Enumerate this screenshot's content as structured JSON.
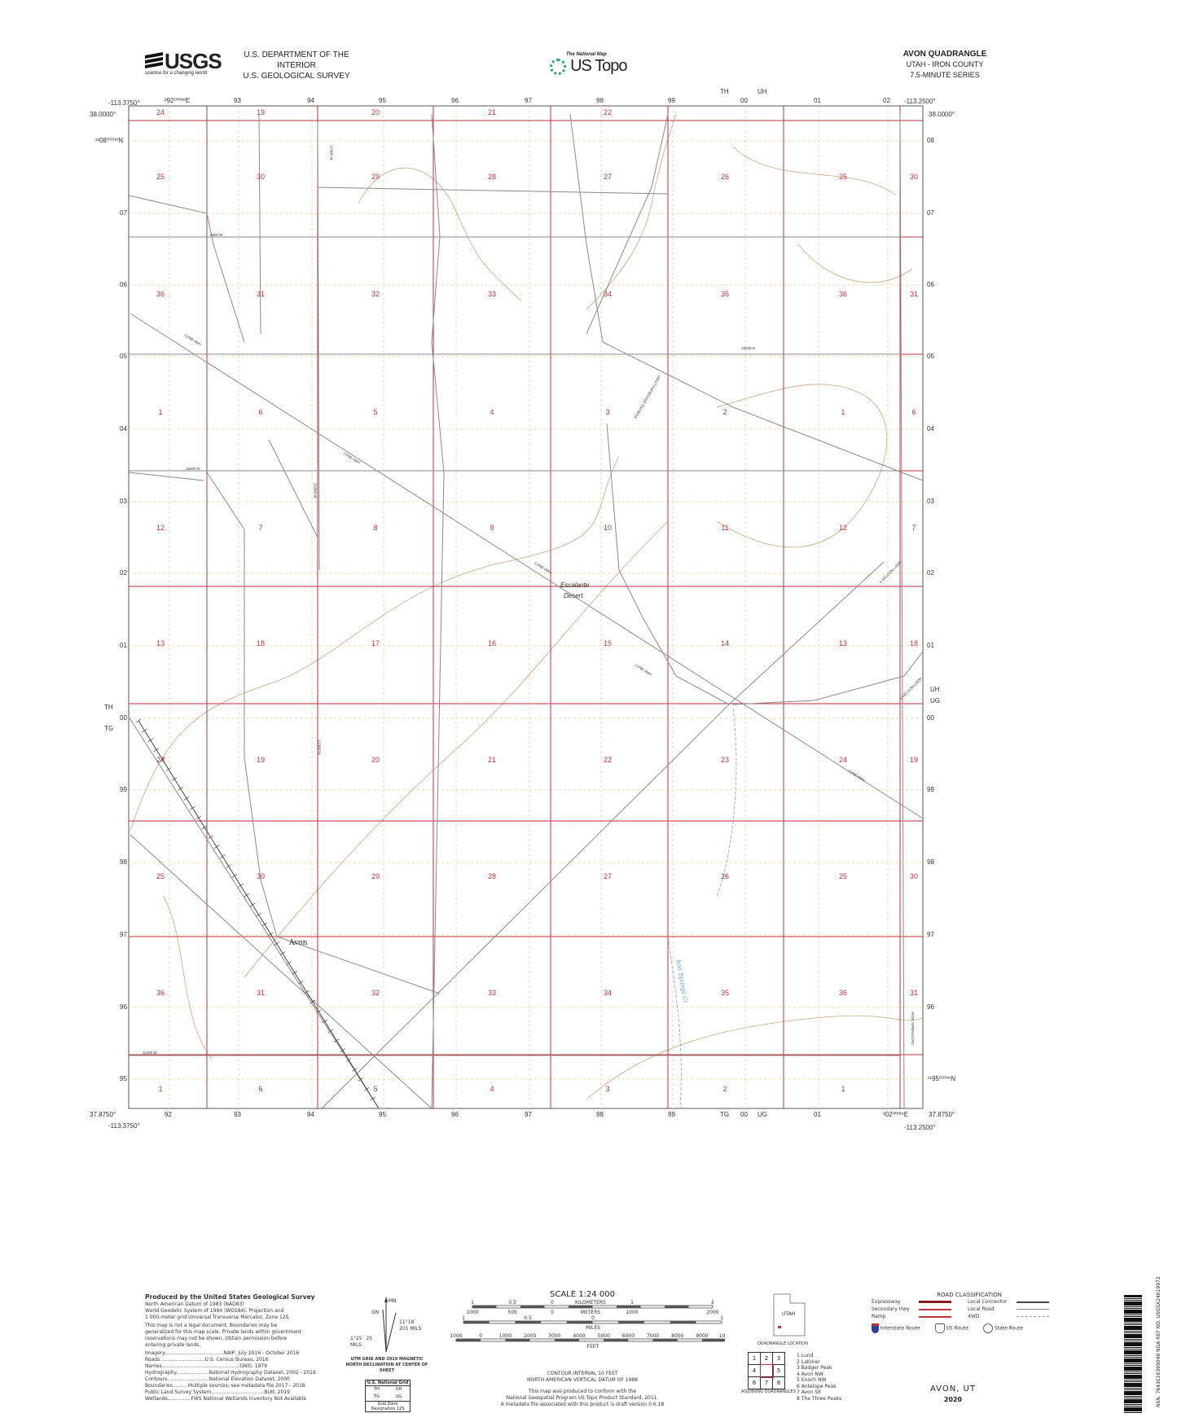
{
  "header": {
    "agency_logo": "USGS",
    "agency_tagline": "science for a changing world",
    "dept_line1": "U.S. DEPARTMENT OF THE INTERIOR",
    "dept_line2": "U.S. GEOLOGICAL SURVEY",
    "national_map_small": "The National Map",
    "us_topo": "US Topo",
    "quad_title": "AVON QUADRANGLE",
    "quad_state_county": "UTAH - IRON COUNTY",
    "quad_series": "7.5-MINUTE SERIES"
  },
  "corners": {
    "top_left_lon": "-113.3750°",
    "top_left_lat": "38.0000°",
    "top_right_lon": "-113.2500°",
    "top_right_lat": "38.0000°",
    "bottom_left_lon": "-113.3750°",
    "bottom_left_lat": "37.8750°",
    "bottom_right_lon": "-113.2500°",
    "bottom_right_lat": "37.8750°"
  },
  "grid_ticks": {
    "top": [
      "²92⁰⁰⁰ᵐE",
      "93",
      "94",
      "95",
      "96",
      "97",
      "98",
      "99",
      "00",
      "01",
      "02"
    ],
    "bottom": [
      "92",
      "93",
      "94",
      "95",
      "96",
      "97",
      "98",
      "99",
      "00",
      "01",
      "³02⁰⁰⁰ᵐE"
    ],
    "left": [
      "⁴²08⁰⁰⁰ᵐN",
      "07",
      "06",
      "05",
      "04",
      "03",
      "02",
      "01",
      "00",
      "99",
      "98",
      "97",
      "96",
      "95"
    ],
    "right": [
      "08",
      "07",
      "06",
      "05",
      "04",
      "03",
      "02",
      "01",
      "00",
      "99",
      "98",
      "97",
      "96",
      "⁴¹95⁰⁰⁰ᵐN"
    ],
    "zone_top": [
      "TH",
      "UH"
    ],
    "zone_bottom": [
      "TG",
      "UG"
    ],
    "zone_left": [
      "TH",
      "TG"
    ],
    "zone_right": [
      "UH",
      "UG"
    ]
  },
  "sections": [
    [
      "24",
      "19",
      "20",
      "21",
      "22"
    ],
    [
      "25",
      "30",
      "29",
      "28",
      "27",
      "26",
      "25",
      "30"
    ],
    [
      "36",
      "31",
      "32",
      "33",
      "34",
      "35",
      "36",
      "31"
    ],
    [
      "1",
      "6",
      "5",
      "4",
      "3",
      "2",
      "1",
      "6"
    ],
    [
      "12",
      "7",
      "8",
      "9",
      "10",
      "11",
      "12",
      "7"
    ],
    [
      "13",
      "18",
      "17",
      "16",
      "15",
      "14",
      "13",
      "18"
    ],
    [
      "24",
      "19",
      "20",
      "21",
      "22",
      "23",
      "24",
      "19"
    ],
    [
      "25",
      "30",
      "29",
      "28",
      "27",
      "26",
      "25",
      "30"
    ],
    [
      "36",
      "31",
      "32",
      "33",
      "34",
      "35",
      "36",
      "31"
    ],
    [
      "1",
      "6",
      "5",
      "4",
      "3",
      "2",
      "1"
    ]
  ],
  "place_labels": {
    "town": "Avon",
    "desert_line1": "Escalante",
    "desert_line2": "Desert",
    "creek": "Iron Springs Cr"
  },
  "road_labels": [
    "LUND HWY",
    "LUND HWY",
    "LUND HWY",
    "LUND HWY",
    "LUND HWY",
    "16000 N",
    "15200 N",
    "6800 W",
    "11200 W",
    "13300 W",
    "13300 W",
    "12300 W",
    "PERKINS DRYSBURN LOOP",
    "S NELSON LOOP",
    "S NELSON LOOP",
    "IRON SPRINGS RD"
  ],
  "footer_left": {
    "produced_by": "Produced by the United States Geological Survey",
    "datum_lines": [
      "North American Datum of 1983 (NAD83)",
      "World Geodetic System of 1984 (WGS84).  Projection and",
      "1 000-meter grid:Universal Transverse Mercator, Zone 12S"
    ],
    "disclaimer": [
      "This map is not a legal document. Boundaries may be",
      "generalized for this map scale. Private lands within government",
      "reservations may not be shown. Obtain permission before",
      "entering private lands."
    ],
    "sources": [
      "Imagery......................................NAIP, July 2016 - October 2016",
      "Roads.............................U.S. Census Bureau, 2016",
      "Names..................................................GNIS, 1979",
      "Hydrography.....................National Hydrography Dataset, 2002 - 2019",
      "Contours...........................National Elevation Dataset, 2000",
      "Boundaries..........Multiple sources; see metadata file 2017 - 2018",
      "Public Land Survey System..................................BLM, 2019",
      "Wetlands...............FWS National Wetlands Inventory Not Available"
    ]
  },
  "declination": {
    "gn": "GN",
    "mn": "MN",
    "gn_angle": "11°18´ 201 MILS",
    "mn_angle": "1°25´ 25 MILS",
    "caption": "UTM GRID AND 2019 MAGNETIC NORTH DECLINATION AT CENTER OF SHEET",
    "grid_title": "U.S. National Grid",
    "grid_cells": [
      "TH",
      "UH",
      "TG",
      "UG"
    ],
    "grid_note": "Grid Zone Designation 12S"
  },
  "scale": {
    "title": "SCALE 1:24 000",
    "km_ticks": [
      "1",
      "0.5",
      "0",
      "1",
      "2"
    ],
    "km_label": "KILOMETERS",
    "m_ticks": [
      "1000",
      "500",
      "0",
      "1000",
      "2000"
    ],
    "m_label": "METERS",
    "mi_ticks": [
      "1",
      "0.5",
      "0",
      "1"
    ],
    "mi_label": "MILES",
    "ft_ticks": [
      "1000",
      "0",
      "1000",
      "2000",
      "3000",
      "4000",
      "5000",
      "6000",
      "7000",
      "8000",
      "9000",
      "10000"
    ],
    "ft_label": "FEET",
    "contour1": "CONTOUR INTERVAL 10 FEET",
    "contour2": "NORTH AMERICAN VERTICAL DATUM OF 1988",
    "standard1": "This map was produced to conform with the",
    "standard2": "National Geospatial Program US Topo Product Standard, 2011.",
    "standard3": "A metadata file associated with this product is draft version 0.6.18"
  },
  "location": {
    "state": "UTAH",
    "caption": "QUADRANGLE LOCATION"
  },
  "adjoining": {
    "caption": "ADJOINING QUADRANGLES",
    "cells": [
      "1",
      "2",
      "3",
      "4",
      "",
      "5",
      "6",
      "7",
      "8"
    ],
    "list": [
      "1 Lund",
      "2 Latimer",
      "3 Badger Peak",
      "4 Avon NW",
      "5 Enoch NW",
      "6 Antelope Peak",
      "7 Avon SE",
      "8 The Three Peaks"
    ]
  },
  "road_legend": {
    "title": "ROAD CLASSIFICATION",
    "left": [
      "Expressway",
      "Secondary Hwy",
      "Ramp"
    ],
    "right": [
      "Local Connector",
      "Local Road",
      "4WD"
    ],
    "shields": [
      "Interstate Route",
      "US Route",
      "State Route"
    ]
  },
  "footer_title": {
    "name": "AVON, UT",
    "year": "2020"
  },
  "barcode_text": "NSN. 7643016399049  NGA REF NO. USGSX24K19972",
  "colors": {
    "section_line": "#c0323a",
    "road": "#8a8a8a",
    "contour": "#c9a77a",
    "water": "#6aaad8",
    "grid": "#e9d28a"
  }
}
